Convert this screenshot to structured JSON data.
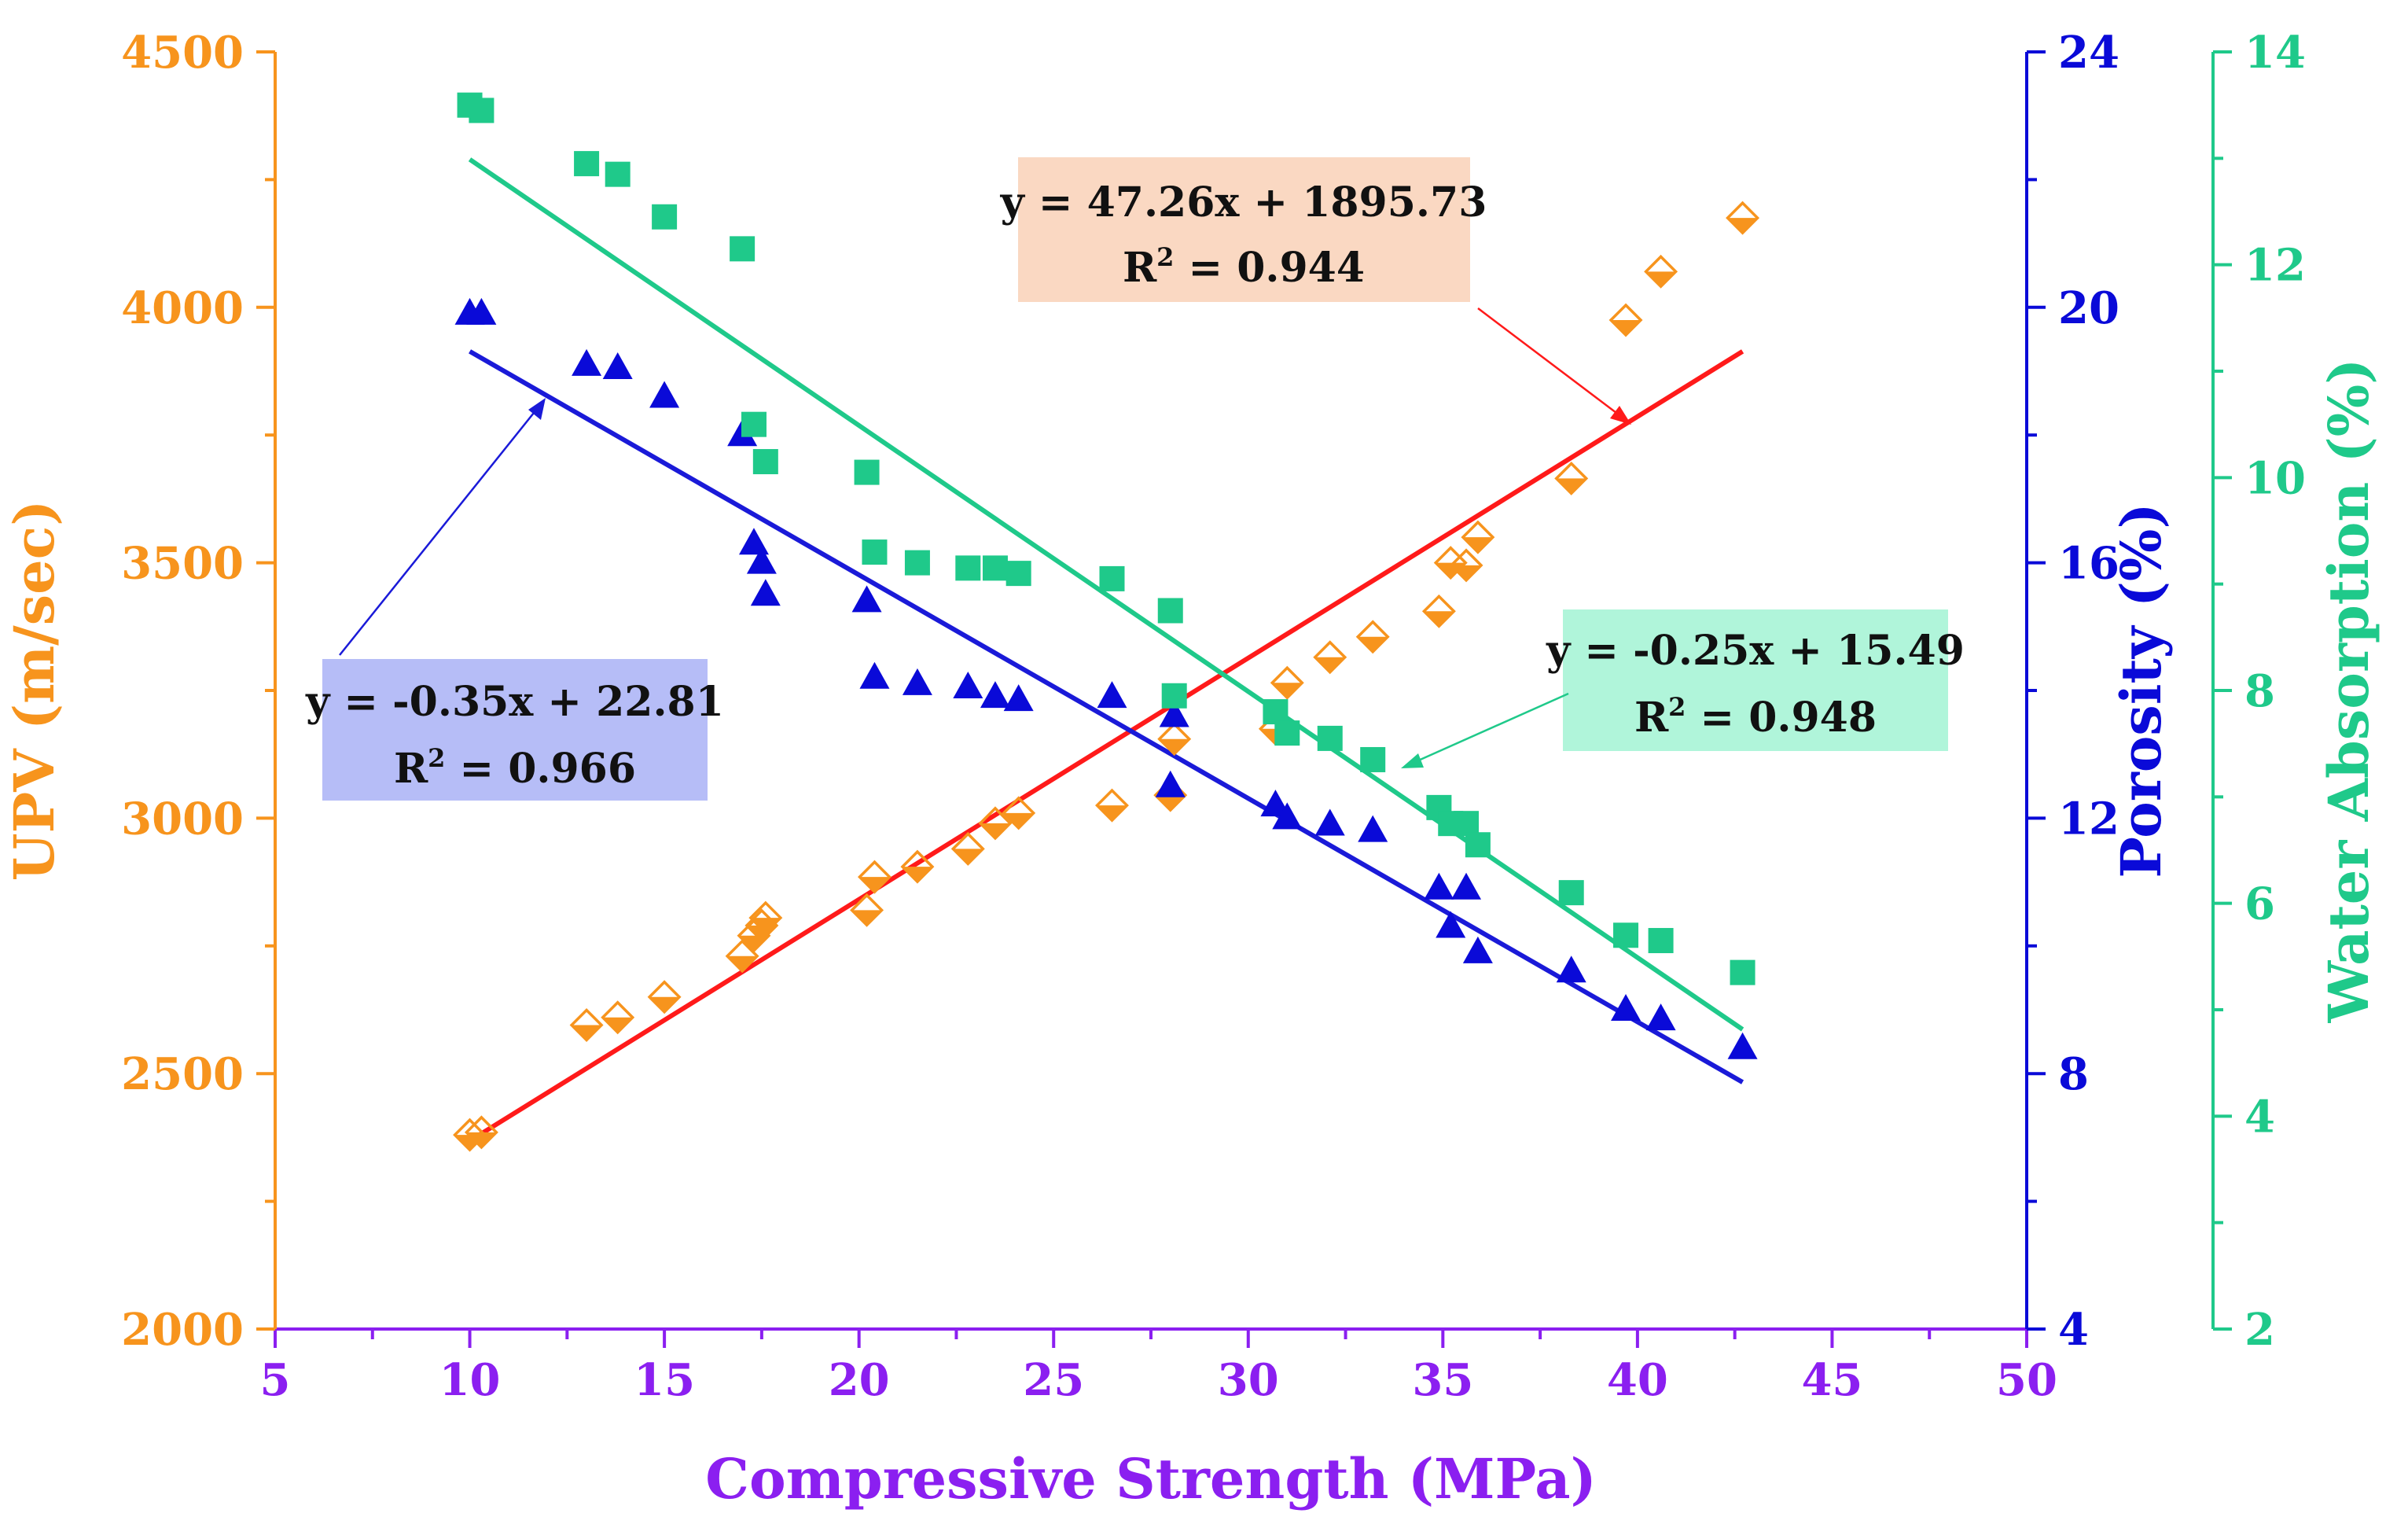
{
  "colors": {
    "upv": "#f7941d",
    "porosity": "#0a0ad8",
    "water": "#1fc98a",
    "x_axis": "#8b1ff0",
    "upv_fit": "#ff1a1a",
    "porosity_fit": "#1a1ad8",
    "water_fit": "#1fc98a",
    "upv_box": "#fad8c2",
    "porosity_box": "#b6bdf7",
    "water_box": "#b0f5da"
  },
  "chart_data": {
    "type": "scatter",
    "xlabel": "Compressive Strength (MPa)",
    "xlim": [
      5,
      50
    ],
    "xticks": [
      "5",
      "10",
      "15",
      "20",
      "25",
      "30",
      "35",
      "40",
      "45",
      "50"
    ],
    "axes": {
      "upv": {
        "label": "UPV (m/sec)",
        "ylim": [
          2000,
          4500
        ],
        "ticks": [
          "2000",
          "2500",
          "3000",
          "3500",
          "4000",
          "4500"
        ]
      },
      "porosity": {
        "label": "Porosity (%)",
        "ylim": [
          4,
          24
        ],
        "ticks": [
          "4",
          "8",
          "12",
          "16",
          "20",
          "24"
        ]
      },
      "water": {
        "label": "Water Absorption (%)",
        "ylim": [
          2,
          14
        ],
        "ticks": [
          "2",
          "4",
          "6",
          "8",
          "10",
          "12",
          "14"
        ]
      }
    },
    "series": [
      {
        "name": "UPV",
        "axis": "upv",
        "marker": "half-diamond",
        "x": [
          10,
          10.3,
          13,
          13.8,
          15,
          17,
          17.3,
          17.5,
          17.6,
          20.2,
          20.4,
          21.5,
          22.8,
          23.5,
          24.1,
          26.5,
          28,
          28.1,
          30.7,
          31,
          32.1,
          33.2,
          34.9,
          35.2,
          35.6,
          35.9,
          38.3,
          39.7,
          40.6,
          42.7
        ],
        "y": [
          2380,
          2385,
          2595,
          2610,
          2650,
          2730,
          2770,
          2790,
          2805,
          2820,
          2885,
          2905,
          2940,
          2990,
          3010,
          3025,
          3045,
          3155,
          3175,
          3265,
          3315,
          3355,
          3405,
          3500,
          3495,
          3550,
          3665,
          3975,
          4070,
          4175
        ]
      },
      {
        "name": "Porosity",
        "axis": "porosity",
        "marker": "triangle",
        "x": [
          10,
          10.3,
          13,
          13.8,
          15,
          17,
          17.3,
          17.5,
          17.6,
          20.2,
          20.4,
          21.5,
          22.8,
          23.5,
          24.1,
          26.5,
          28,
          28.1,
          30.7,
          31,
          32.1,
          33.2,
          34.9,
          35.2,
          35.6,
          35.9,
          38.3,
          39.7,
          40.6,
          42.7
        ],
        "y": [
          19.9,
          19.9,
          19.1,
          19.05,
          18.6,
          18.0,
          16.3,
          16.0,
          15.5,
          15.4,
          14.2,
          14.1,
          14.05,
          13.9,
          13.85,
          13.9,
          12.5,
          13.6,
          12.2,
          12.0,
          11.9,
          11.8,
          10.9,
          10.3,
          10.9,
          9.9,
          9.6,
          9.0,
          8.85,
          8.4
        ]
      },
      {
        "name": "Water Absorption",
        "axis": "water",
        "marker": "square",
        "x": [
          10,
          10.3,
          13,
          13.8,
          15,
          17,
          17.3,
          17.6,
          20.2,
          20.4,
          21.5,
          22.8,
          23.5,
          24.1,
          26.5,
          28,
          28.1,
          30.7,
          31,
          32.1,
          33.2,
          34.9,
          35.2,
          35.6,
          35.9,
          38.3,
          39.7,
          40.6,
          42.7
        ],
        "y": [
          13.5,
          13.45,
          12.95,
          12.85,
          12.45,
          12.15,
          10.5,
          10.15,
          10.05,
          9.3,
          9.2,
          9.15,
          9.15,
          9.1,
          9.05,
          8.75,
          7.95,
          7.8,
          7.6,
          7.55,
          7.35,
          6.9,
          6.75,
          6.75,
          6.55,
          6.1,
          5.7,
          5.65,
          5.35
        ]
      }
    ],
    "fits": [
      {
        "name": "UPV fit",
        "axis": "upv",
        "slope": 47.26,
        "intercept": 1895.73,
        "x_range": [
          10,
          42.7
        ],
        "equation": "y = 47.26x + 1895.73",
        "r2_prefix": "R",
        "r2_sup": "2",
        "r2_value": " = 0.944"
      },
      {
        "name": "Porosity fit",
        "axis": "porosity",
        "slope": -0.35,
        "intercept": 22.81,
        "x_range": [
          10,
          42.7
        ],
        "equation": "y = -0.35x + 22.81",
        "r2_prefix": "R",
        "r2_sup": "2",
        "r2_value": " = 0.966"
      },
      {
        "name": "Water absorption fit",
        "axis": "water",
        "slope": -0.25,
        "intercept": 15.49,
        "x_range": [
          10,
          42.7
        ],
        "equation": "y = -0.25x + 15.49",
        "r2_prefix": "R",
        "r2_sup": "2",
        "r2_value": " = 0.948"
      }
    ]
  }
}
